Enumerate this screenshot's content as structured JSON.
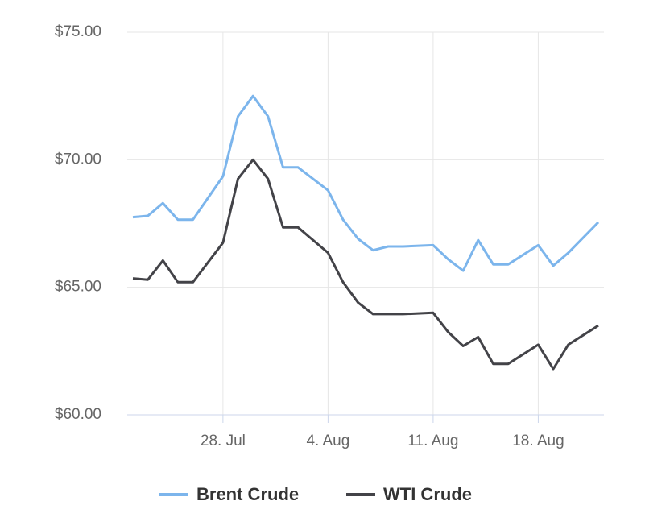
{
  "chart_data": {
    "type": "line",
    "x": [
      "22. Jul",
      "23. Jul",
      "24. Jul",
      "25. Jul",
      "26. Jul",
      "28. Jul",
      "29. Jul",
      "30. Jul",
      "31. Jul",
      "1. Aug",
      "2. Aug",
      "4. Aug",
      "5. Aug",
      "6. Aug",
      "7. Aug",
      "8. Aug",
      "9. Aug",
      "11. Aug",
      "12. Aug",
      "13. Aug",
      "14. Aug",
      "15. Aug",
      "16. Aug",
      "18. Aug",
      "19. Aug",
      "20. Aug",
      "22. Aug"
    ],
    "series": [
      {
        "name": "Brent Crude",
        "color": "#7cb5ec",
        "values": [
          67.75,
          67.8,
          68.3,
          67.65,
          67.65,
          69.35,
          71.7,
          72.5,
          71.7,
          69.7,
          69.7,
          68.8,
          67.65,
          66.9,
          66.45,
          66.6,
          66.6,
          66.65,
          66.1,
          65.65,
          66.85,
          65.9,
          65.9,
          66.65,
          65.85,
          66.35,
          67.55
        ]
      },
      {
        "name": "WTI Crude",
        "color": "#434348",
        "values": [
          65.35,
          65.3,
          66.05,
          65.2,
          65.2,
          66.75,
          69.25,
          70.0,
          69.25,
          67.35,
          67.35,
          66.35,
          65.2,
          64.4,
          63.95,
          63.95,
          63.95,
          64.0,
          63.25,
          62.7,
          63.05,
          62.0,
          62.0,
          62.75,
          61.8,
          62.75,
          63.5
        ]
      }
    ],
    "xlim": [
      "22. Jul",
      "22. Aug"
    ],
    "xticks": [
      "28. Jul",
      "4. Aug",
      "11. Aug",
      "18. Aug"
    ],
    "ylim": [
      60,
      75
    ],
    "yticks": [
      {
        "value": 60,
        "label": "$60.00"
      },
      {
        "value": 65,
        "label": "$65.00"
      },
      {
        "value": 70,
        "label": "$70.00"
      },
      {
        "value": 75,
        "label": "$75.00"
      }
    ],
    "grid": true,
    "legend": "bottom"
  }
}
